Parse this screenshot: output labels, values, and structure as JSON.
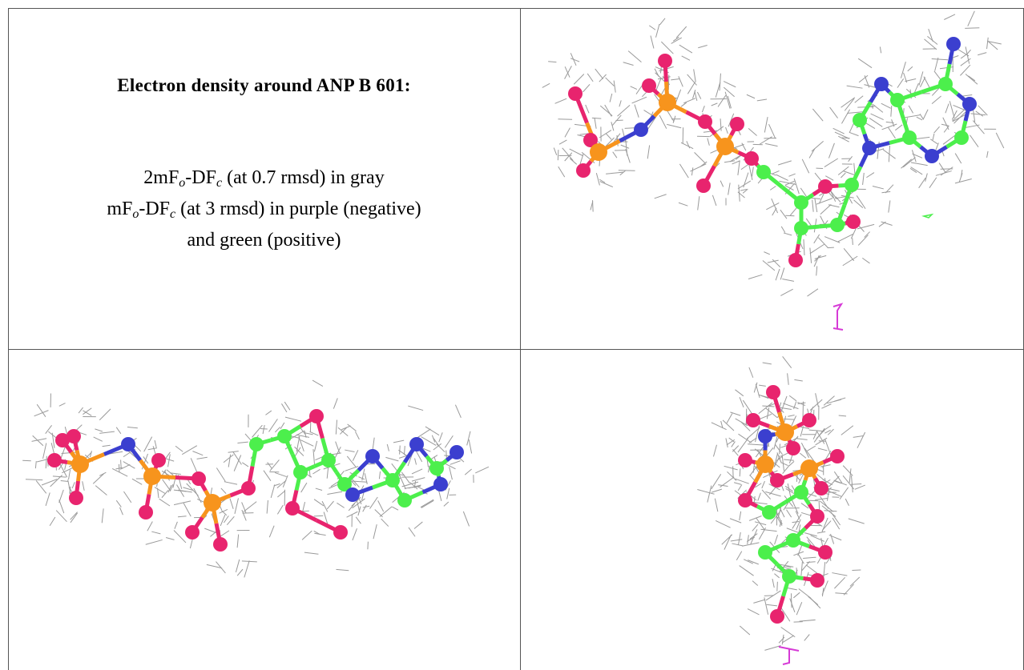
{
  "caption": {
    "title": "Electron density around ANP B 601:",
    "lines": [
      [
        "2mF",
        "o",
        "-DF",
        "c",
        " (at 0.7 rmsd) in gray"
      ],
      [
        "mF",
        "o",
        "-DF",
        "c",
        " (at 3 rmsd) in purple (negative)"
      ],
      [
        "and green (positive)"
      ]
    ]
  }
}
